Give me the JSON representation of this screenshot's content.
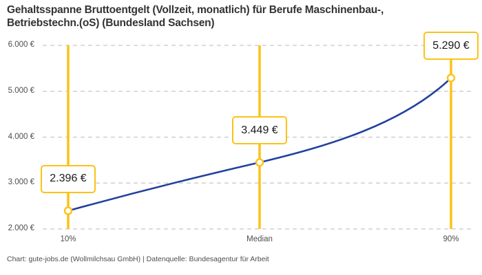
{
  "header": {
    "title_line1": "Gehaltsspanne Bruttoentgelt (Vollzeit, monatlich) für Berufe Maschinenbau-,",
    "title_line2": "Betriebstechn.(oS) (Bundesland Sachsen)"
  },
  "footer": {
    "attribution": "Chart: gute-jobs.de (Wollmilchsau GmbH) | Datenquelle: Bundesagentur für Arbeit"
  },
  "chart_data": {
    "type": "line",
    "title": "Gehaltsspanne Bruttoentgelt (Vollzeit, monatlich) für Berufe Maschinenbau-, Betriebstechn.(oS) (Bundesland Sachsen)",
    "categories": [
      "10%",
      "Median",
      "90%"
    ],
    "x_percentiles": [
      10,
      50,
      90
    ],
    "values": [
      2396,
      3449,
      5290
    ],
    "value_labels": [
      "2.396 €",
      "3.449 €",
      "5.290 €"
    ],
    "ylabel": "",
    "xlabel": "",
    "ylim": [
      2000,
      6000
    ],
    "y_ticks": [
      {
        "value": 6000,
        "label": "6.000 €"
      },
      {
        "value": 5000,
        "label": "5.000 €"
      },
      {
        "value": 4000,
        "label": "4.000 €"
      },
      {
        "value": 3000,
        "label": "3.000 €"
      },
      {
        "value": 2000,
        "label": "2.000 €"
      }
    ],
    "grid": "horizontal-dashed",
    "legend": "none",
    "colors": {
      "line": "#22409e",
      "accent": "#fcc216",
      "grid": "#c7c7c7",
      "marker_fill": "#ffffff",
      "title_text": "#333333",
      "tick_text": "#4d4d4d",
      "annotation_text": "#1a1a1a"
    }
  }
}
